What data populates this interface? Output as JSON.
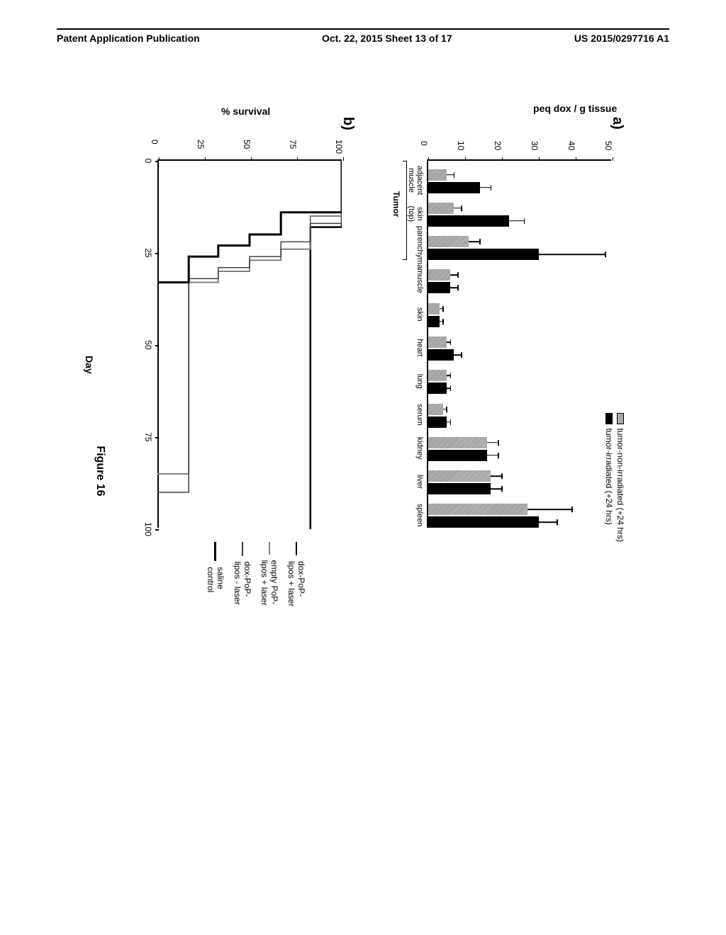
{
  "header": {
    "left": "Patent Application Publication",
    "center": "Oct. 22, 2015  Sheet 13 of 17",
    "right": "US 2015/0297716 A1"
  },
  "figure_caption": "Figure 16",
  "panel_a": {
    "label": "a)",
    "type": "bar",
    "ylabel": "peq dox / g tissue",
    "ylim": [
      0,
      50
    ],
    "ytick_step": 10,
    "yticks": [
      0,
      10,
      20,
      30,
      40,
      50
    ],
    "categories": [
      "adjacent\nmuscle",
      "skin\n(top)",
      "parenchyma",
      "muscle",
      "skin",
      "heart",
      "lung",
      "serum",
      "kidney",
      "liver",
      "spleen"
    ],
    "tumor_group_label": "Tumor",
    "series": [
      {
        "name": "tumor-non-irradiated (+24 hrs)",
        "color_pattern": "hatched-gray",
        "values": [
          5,
          7,
          11,
          6,
          3,
          5,
          5,
          4,
          16,
          17,
          27
        ],
        "errors": [
          2,
          2,
          3,
          2,
          1,
          1,
          1,
          1,
          3,
          3,
          12
        ]
      },
      {
        "name": "tumor-irradiated (+24 hrs)",
        "color": "#000000",
        "values": [
          14,
          22,
          30,
          6,
          3,
          7,
          5,
          5,
          16,
          17,
          30
        ],
        "errors": [
          3,
          4,
          18,
          2,
          1,
          2,
          1,
          1,
          3,
          3,
          5
        ]
      }
    ],
    "bar_colors": {
      "non_irradiated": "#b0b0b0",
      "irradiated": "#000000"
    },
    "background_color": "#ffffff"
  },
  "panel_b": {
    "label": "b)",
    "type": "survival",
    "ylabel": "% survival",
    "xlabel": "Day",
    "xlim": [
      0,
      100
    ],
    "ylim": [
      0,
      100
    ],
    "yticks": [
      0,
      25,
      50,
      75,
      100
    ],
    "xticks": [
      0,
      25,
      50,
      75,
      100
    ],
    "series": [
      {
        "name": "dox-PoP-lipos + laser",
        "color": "#000000",
        "style": "solid",
        "width": 2.5,
        "points": [
          [
            0,
            100
          ],
          [
            18,
            100
          ],
          [
            18,
            83
          ],
          [
            40,
            83
          ],
          [
            40,
            83
          ],
          [
            100,
            83
          ]
        ]
      },
      {
        "name": "empty PoP-lipos + laser",
        "color": "#808080",
        "style": "solid",
        "width": 2,
        "points": [
          [
            0,
            100
          ],
          [
            15,
            100
          ],
          [
            15,
            83
          ],
          [
            24,
            83
          ],
          [
            24,
            67
          ],
          [
            27,
            67
          ],
          [
            27,
            50
          ],
          [
            30,
            50
          ],
          [
            30,
            33
          ],
          [
            33,
            33
          ],
          [
            33,
            17
          ],
          [
            85,
            17
          ],
          [
            85,
            0
          ]
        ]
      },
      {
        "name": "dox-PoP-lipos - laser",
        "color": "#404040",
        "style": "solid",
        "width": 1.5,
        "points": [
          [
            0,
            100
          ],
          [
            17,
            100
          ],
          [
            17,
            83
          ],
          [
            22,
            83
          ],
          [
            22,
            67
          ],
          [
            26,
            67
          ],
          [
            26,
            50
          ],
          [
            29,
            50
          ],
          [
            29,
            33
          ],
          [
            32,
            33
          ],
          [
            32,
            17
          ],
          [
            90,
            17
          ],
          [
            90,
            0
          ]
        ]
      },
      {
        "name": "saline control",
        "color": "#000000",
        "style": "solid",
        "width": 3,
        "points": [
          [
            0,
            100
          ],
          [
            14,
            100
          ],
          [
            14,
            67
          ],
          [
            20,
            67
          ],
          [
            20,
            50
          ],
          [
            23,
            50
          ],
          [
            23,
            33
          ],
          [
            26,
            33
          ],
          [
            26,
            17
          ],
          [
            33,
            17
          ],
          [
            33,
            0
          ]
        ]
      }
    ],
    "background_color": "#ffffff"
  }
}
